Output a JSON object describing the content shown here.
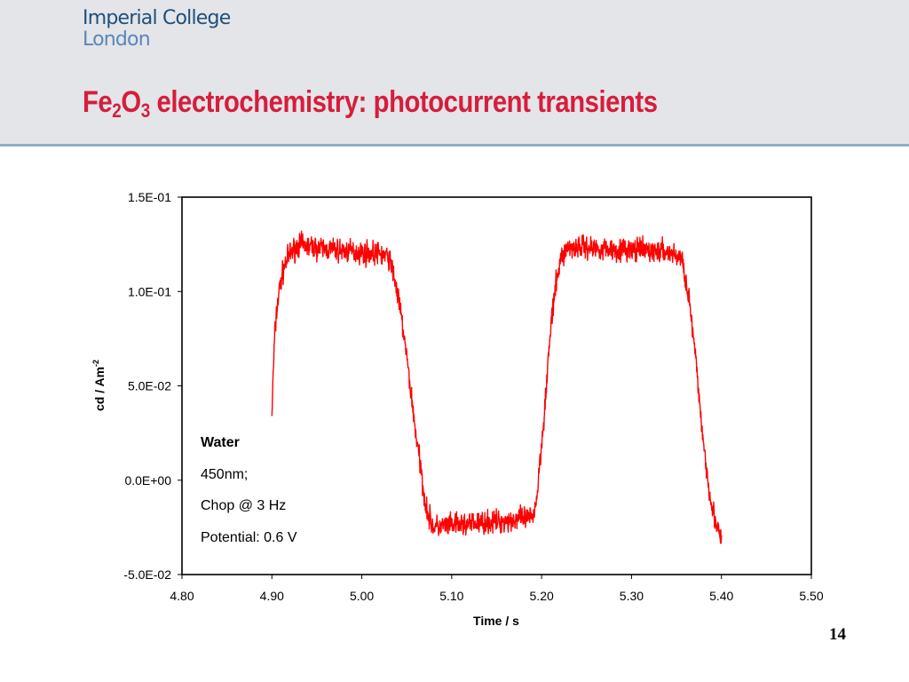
{
  "header": {
    "logo_line1": "Imperial College",
    "logo_line2": "London",
    "title_part1": "Fe",
    "title_sub1": "2",
    "title_part2": "O",
    "title_sub2": "3",
    "title_part3": " electrochemistry: photocurrent transients"
  },
  "page_number": "14",
  "colors": {
    "series": "#ff0000",
    "title": "#d71d3c",
    "header_bg": "#e3e5e8",
    "header_rule": "#8fb0cc"
  },
  "chart_data": {
    "type": "line",
    "xlabel": "Time / s",
    "ylabel": "cd / Am",
    "ylabel_sup": "-2",
    "xlim": [
      4.8,
      5.5
    ],
    "ylim": [
      -0.05,
      0.15
    ],
    "xticks": [
      "4.80",
      "4.90",
      "5.00",
      "5.10",
      "5.20",
      "5.30",
      "5.40",
      "5.50"
    ],
    "yticks": [
      "1.5E-01",
      "1.0E-01",
      "5.0E-02",
      "0.0E+00",
      "-5.0E-02"
    ],
    "grid": false,
    "legend": "none",
    "annotations": [
      "Water",
      "450nm;",
      "Chop @ 3 Hz",
      "Potential: 0.6 V"
    ],
    "series": [
      {
        "x": [
          4.9,
          4.901,
          4.903,
          4.905,
          4.908,
          4.911,
          4.915,
          4.92,
          4.93,
          4.95,
          4.99,
          5.02,
          5.03,
          5.035,
          5.04,
          5.045,
          5.05,
          5.055,
          5.06,
          5.065,
          5.07,
          5.075,
          5.08,
          5.1,
          5.15,
          5.19,
          5.195,
          5.198,
          5.202,
          5.206,
          5.21,
          5.215,
          5.22,
          5.225,
          5.23,
          5.24,
          5.26,
          5.3,
          5.34,
          5.355,
          5.36,
          5.365,
          5.37,
          5.375,
          5.38,
          5.385,
          5.39,
          5.395,
          5.398,
          5.4
        ],
        "y": [
          0.034,
          0.05,
          0.075,
          0.088,
          0.1,
          0.108,
          0.115,
          0.12,
          0.125,
          0.123,
          0.121,
          0.12,
          0.118,
          0.11,
          0.098,
          0.083,
          0.065,
          0.045,
          0.025,
          0.008,
          -0.01,
          -0.02,
          -0.025,
          -0.024,
          -0.022,
          -0.02,
          -0.008,
          0.01,
          0.03,
          0.055,
          0.08,
          0.1,
          0.115,
          0.121,
          0.123,
          0.124,
          0.123,
          0.122,
          0.121,
          0.118,
          0.108,
          0.092,
          0.07,
          0.045,
          0.02,
          0.0,
          -0.015,
          -0.025,
          -0.03,
          -0.032
        ],
        "noise_amplitude": 0.006
      }
    ]
  }
}
